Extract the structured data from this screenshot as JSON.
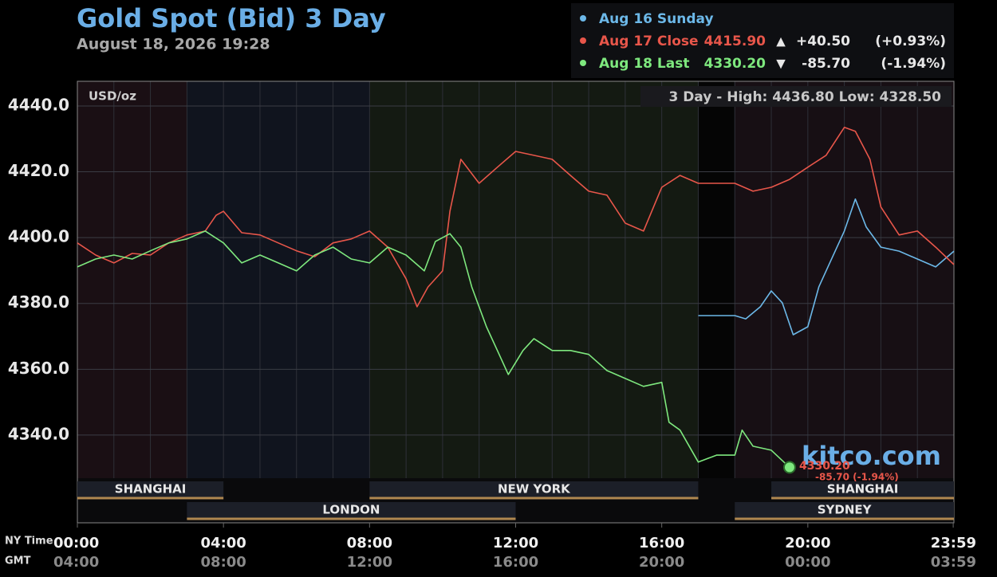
{
  "chart_data": {
    "type": "line",
    "title": "Gold Spot (Bid) 3 Day",
    "subtitle": "August 18, 2026 19:28",
    "unit_label": "USD/oz",
    "range_label": "3 Day - High: 4436.80  Low: 4328.50",
    "watermark": "kitco.com",
    "last_label": "4330.20",
    "last_change_label": "-85.70 (-1.94%)",
    "x_axis_label": "NY Time",
    "x2_axis_label": "GMT",
    "xlim": [
      0,
      24
    ],
    "xticks": [
      {
        "value": 0,
        "label": "00:00"
      },
      {
        "value": 4,
        "label": "04:00"
      },
      {
        "value": 8,
        "label": "08:00"
      },
      {
        "value": 12,
        "label": "12:00"
      },
      {
        "value": 16,
        "label": "16:00"
      },
      {
        "value": 20,
        "label": "20:00"
      },
      {
        "value": 23.98,
        "label": "23:59"
      }
    ],
    "x2tick_labels": [
      "04:00",
      "08:00",
      "12:00",
      "16:00",
      "20:00",
      "00:00",
      "03:59"
    ],
    "ylim": [
      4326.9,
      4447.5
    ],
    "yticks": [
      {
        "value": 4340,
        "label": "4340.0"
      },
      {
        "value": 4360,
        "label": "4360.0"
      },
      {
        "value": 4380,
        "label": "4380.0"
      },
      {
        "value": 4400,
        "label": "4400.0"
      },
      {
        "value": 4420,
        "label": "4420.0"
      },
      {
        "value": 4440,
        "label": "4440.0"
      }
    ],
    "grid": true,
    "sessions": [
      {
        "name": "SHANGHAI",
        "start": 0,
        "end": 4,
        "row": 1
      },
      {
        "name": "LONDON",
        "start": 3,
        "end": 12,
        "row": 2
      },
      {
        "name": "NEW YORK",
        "start": 8,
        "end": 17,
        "row": 1
      },
      {
        "name": "SHANGHAI",
        "start": 19,
        "end": 24,
        "row": 1
      },
      {
        "name": "SYDNEY",
        "start": 18,
        "end": 24,
        "row": 2
      }
    ],
    "series": [
      {
        "name": "Aug 16 Sunday",
        "color": "#6cb8e8",
        "price": "",
        "arrow": "",
        "change": "",
        "change_pct": "",
        "x": [
          17,
          18,
          18.3,
          18.7,
          19,
          19.3,
          19.6,
          20,
          20.3,
          20.6,
          21,
          21.3,
          21.6,
          22,
          22.5,
          23,
          23.5,
          24
        ],
        "values": [
          4376.3,
          4376.3,
          4375.3,
          4379,
          4383.8,
          4380.2,
          4370.5,
          4372.9,
          4385,
          4392.3,
          4402,
          4411.7,
          4403.2,
          4397.1,
          4395.9,
          4393.5,
          4391.1,
          4395.9
        ]
      },
      {
        "name": "Aug 17 Close",
        "color": "#e8564a",
        "price": "4415.90",
        "arrow": "▲",
        "change": "+40.50",
        "change_pct": "(+0.93%)",
        "x": [
          0,
          0.5,
          1,
          1.5,
          2,
          2.5,
          3,
          3.5,
          3.8,
          4,
          4.5,
          5,
          5.5,
          6,
          6.5,
          7,
          7.5,
          8,
          8.5,
          9,
          9.3,
          9.6,
          10,
          10.2,
          10.5,
          11,
          11.5,
          12,
          12.5,
          13,
          13.5,
          14,
          14.5,
          15,
          15.5,
          16,
          16.5,
          17,
          18,
          18.5,
          19,
          19.5,
          20,
          20.5,
          21,
          21.3,
          21.7,
          22,
          22.5,
          23,
          23.5,
          24
        ],
        "values": [
          4398.4,
          4394.7,
          4392.3,
          4395.2,
          4394.7,
          4398.4,
          4400.8,
          4402,
          4406.8,
          4408,
          4401.5,
          4400.8,
          4398.4,
          4396,
          4394.2,
          4398.4,
          4399.6,
          4402,
          4397.1,
          4387.5,
          4379,
          4385,
          4389.9,
          4408,
          4423.8,
          4416.5,
          4421.4,
          4426.2,
          4425,
          4423.8,
          4418.9,
          4414.1,
          4412.9,
          4404.4,
          4402,
          4415.3,
          4418.9,
          4416.5,
          4416.5,
          4414.1,
          4415.3,
          4417.7,
          4421.4,
          4425,
          4433.5,
          4432.3,
          4423.8,
          4409.3,
          4400.8,
          4402,
          4397.1,
          4391.8
        ]
      },
      {
        "name": "Aug 18 Last",
        "color": "#7ee87e",
        "price": "4330.20",
        "arrow": "▼",
        "change": "-85.70",
        "change_pct": "(-1.94%)",
        "x": [
          0,
          0.5,
          1,
          1.5,
          2,
          2.5,
          3,
          3.5,
          4,
          4.5,
          5,
          5.5,
          6,
          6.5,
          7,
          7.5,
          8,
          8.5,
          9,
          9.5,
          9.8,
          10.2,
          10.5,
          10.8,
          11.2,
          11.5,
          11.8,
          12.2,
          12.5,
          13,
          13.5,
          14,
          14.5,
          15,
          15.5,
          16,
          16.2,
          16.5,
          17,
          17.5,
          18,
          18.2,
          18.5,
          19,
          19.5
        ],
        "values": [
          4391.1,
          4393.5,
          4394.7,
          4393.5,
          4396,
          4398.4,
          4399.6,
          4402,
          4398.4,
          4392.3,
          4394.7,
          4392.3,
          4389.9,
          4394.7,
          4397.1,
          4393.5,
          4392.3,
          4397.1,
          4394.7,
          4389.9,
          4398.8,
          4401.2,
          4397.1,
          4385,
          4372.9,
          4365.7,
          4358.4,
          4365.7,
          4369.3,
          4365.7,
          4365.7,
          4364.5,
          4359.6,
          4357.2,
          4354.8,
          4356,
          4343.9,
          4341.5,
          4331.8,
          4333.9,
          4333.9,
          4341.5,
          4336.6,
          4335.4,
          4330.2
        ]
      }
    ]
  }
}
